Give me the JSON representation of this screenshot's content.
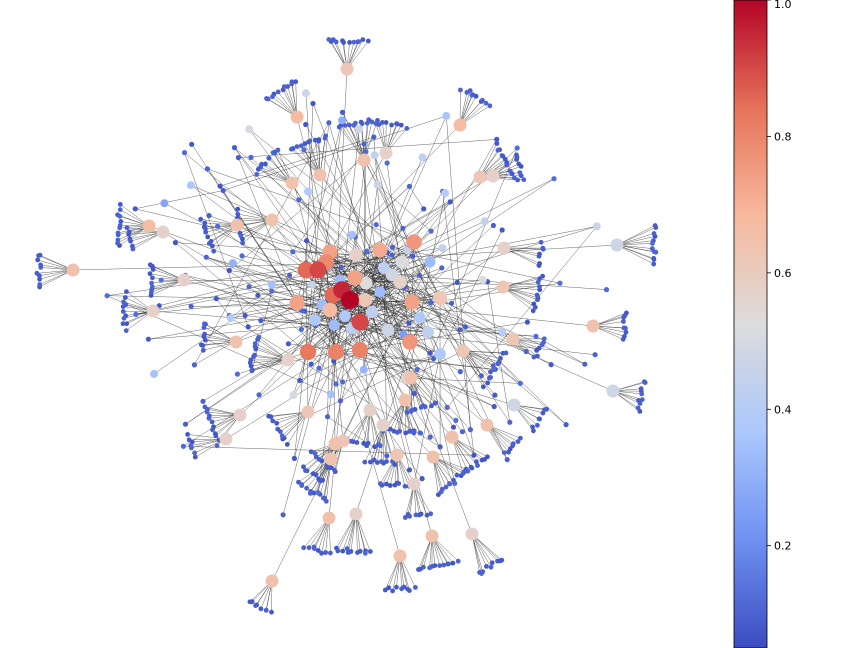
{
  "figure": {
    "colormap": "coolwarm",
    "colormap_stops": [
      "#3b4cc0",
      "#6f92f3",
      "#aac7fd",
      "#dddcdc",
      "#f7b89c",
      "#e7745b",
      "#b40426"
    ],
    "edge_color": "#333333",
    "background": "#ffffff"
  },
  "colorbar": {
    "min": 0.05,
    "max": 1.0,
    "ticks": [
      {
        "value": 1.0,
        "label": "1.0"
      },
      {
        "value": 0.8,
        "label": "0.8"
      },
      {
        "value": 0.6,
        "label": "0.6"
      },
      {
        "value": 0.4,
        "label": "0.4"
      },
      {
        "value": 0.2,
        "label": "0.2"
      }
    ]
  }
}
